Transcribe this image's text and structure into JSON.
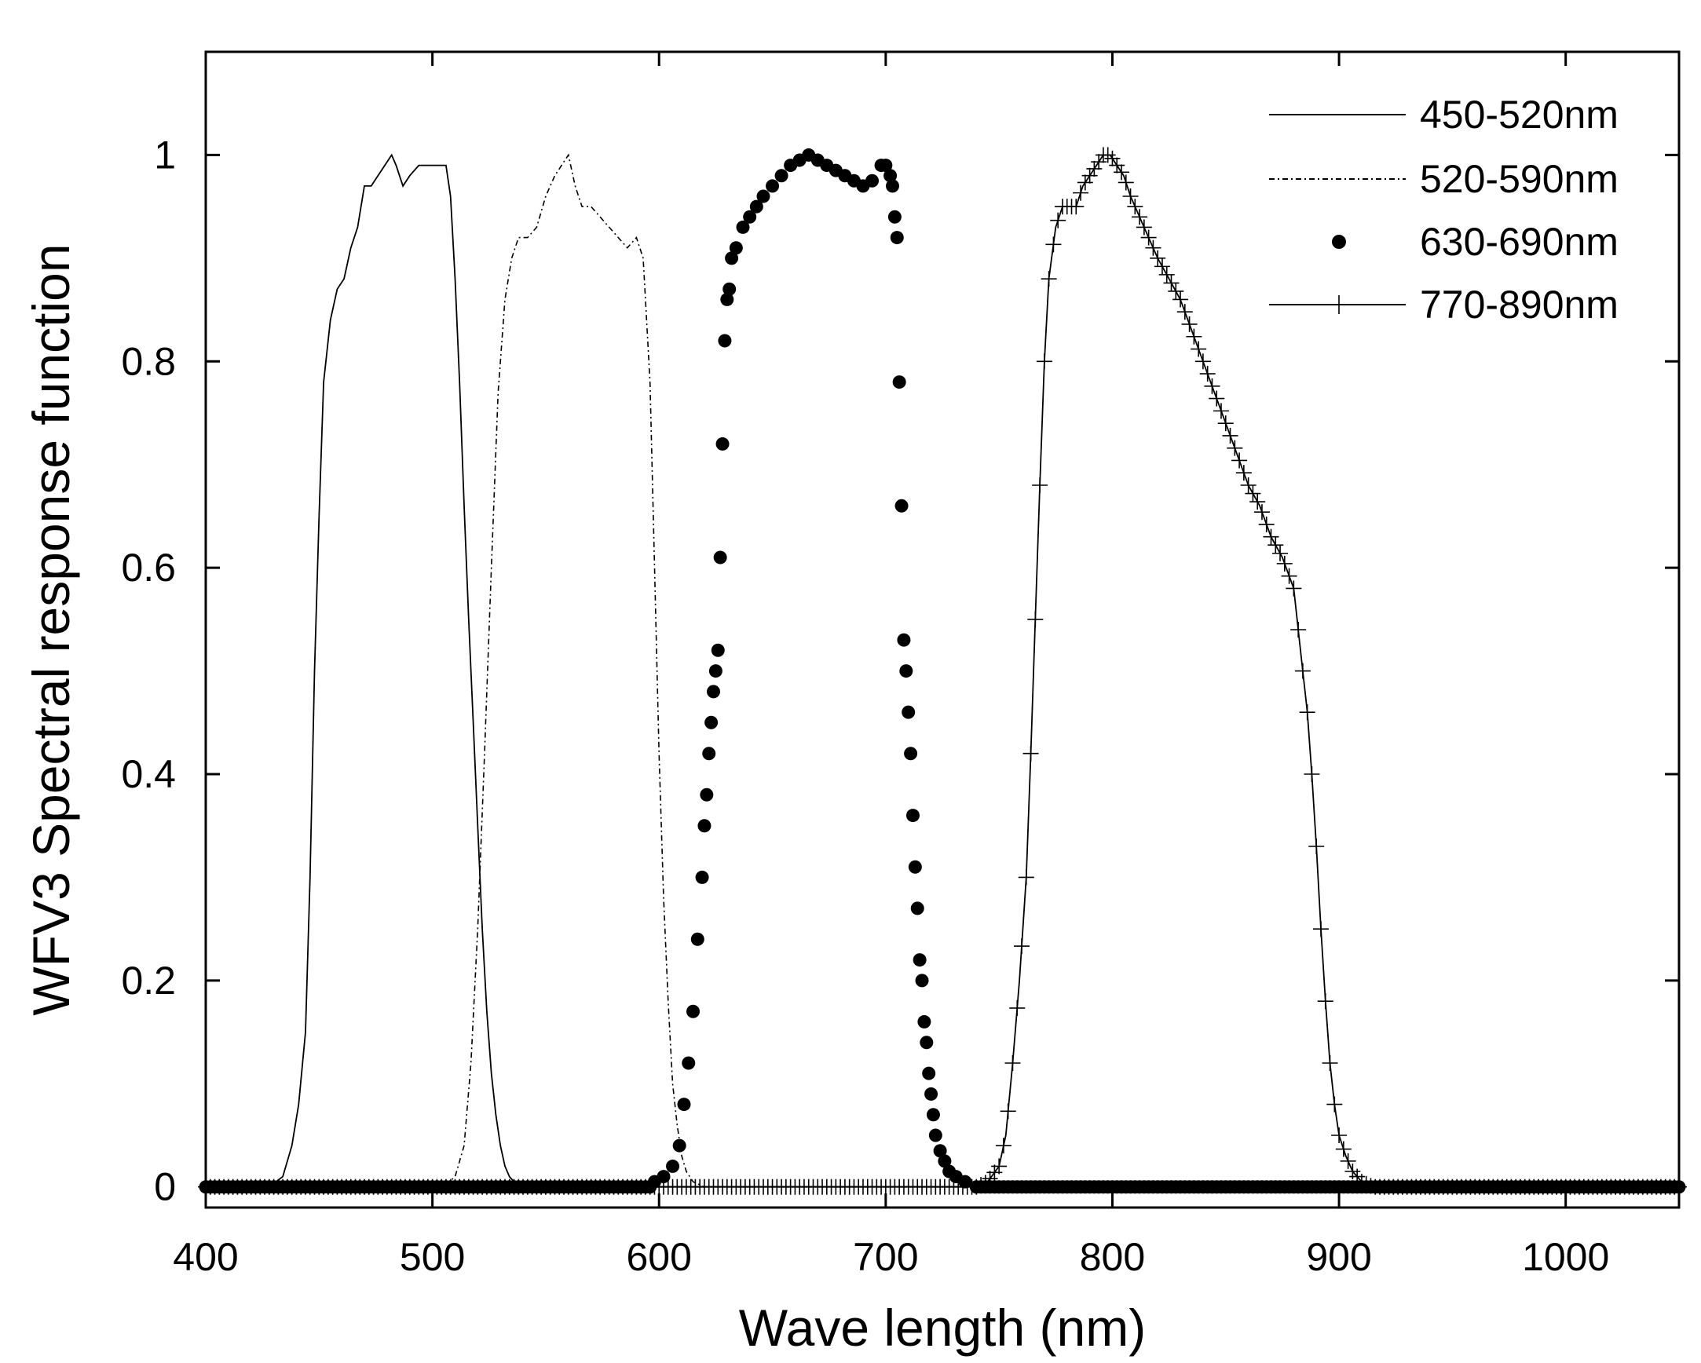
{
  "chart_data": {
    "type": "line",
    "title": "",
    "xlabel": "Wave length (nm)",
    "ylabel": "WFV3 Spectral response function",
    "xlim": [
      400,
      1050
    ],
    "ylim": [
      -0.02,
      1.1
    ],
    "xticks": [
      400,
      500,
      600,
      700,
      800,
      900,
      1000
    ],
    "yticks": [
      0,
      0.2,
      0.4,
      0.6,
      0.8,
      1
    ],
    "xtick_labels": [
      "400",
      "500",
      "600",
      "700",
      "800",
      "900",
      "1000"
    ],
    "ytick_labels": [
      "0",
      "0.2",
      "0.4",
      "0.6",
      "0.8",
      "1"
    ],
    "grid": false,
    "legend_position": "top-right",
    "series": [
      {
        "name": "450-520nm",
        "style": "solid",
        "x": [
          400,
          428,
          434,
          438,
          441,
          444,
          446,
          448,
          450,
          452,
          455,
          458,
          461,
          464,
          467,
          470,
          473,
          476,
          479,
          482,
          484,
          487,
          490,
          494,
          498,
          502,
          506,
          508,
          510,
          512,
          514,
          516,
          518,
          520,
          522,
          524,
          526,
          528,
          530,
          532,
          534,
          536,
          540,
          600,
          700,
          800,
          900,
          1000,
          1050
        ],
        "y": [
          0,
          0,
          0.01,
          0.04,
          0.08,
          0.15,
          0.3,
          0.5,
          0.65,
          0.78,
          0.84,
          0.87,
          0.88,
          0.91,
          0.93,
          0.97,
          0.97,
          0.98,
          0.99,
          1.0,
          0.99,
          0.97,
          0.98,
          0.99,
          0.99,
          0.99,
          0.99,
          0.96,
          0.88,
          0.78,
          0.66,
          0.55,
          0.45,
          0.35,
          0.25,
          0.17,
          0.11,
          0.07,
          0.04,
          0.02,
          0.01,
          0.005,
          0,
          0,
          0,
          0,
          0,
          0,
          0
        ]
      },
      {
        "name": "520-590nm",
        "style": "dash-dot",
        "x": [
          400,
          505,
          510,
          514,
          517,
          520,
          523,
          526,
          529,
          532,
          535,
          538,
          542,
          546,
          550,
          554,
          557,
          560,
          563,
          566,
          570,
          574,
          578,
          582,
          586,
          590,
          593,
          596,
          598,
          600,
          602,
          604,
          606,
          608,
          610,
          612,
          615,
          620,
          650,
          700,
          800,
          900,
          1000,
          1050
        ],
        "y": [
          0,
          0,
          0.01,
          0.04,
          0.12,
          0.25,
          0.42,
          0.6,
          0.77,
          0.86,
          0.9,
          0.92,
          0.92,
          0.93,
          0.96,
          0.98,
          0.99,
          1.0,
          0.97,
          0.95,
          0.95,
          0.94,
          0.93,
          0.92,
          0.91,
          0.92,
          0.9,
          0.78,
          0.6,
          0.42,
          0.28,
          0.18,
          0.1,
          0.06,
          0.03,
          0.015,
          0.005,
          0,
          0,
          0,
          0,
          0,
          0,
          0
        ]
      },
      {
        "name": "630-690nm",
        "style": "dots",
        "x": [
          598,
          602,
          606,
          609,
          611,
          613,
          615,
          617,
          619,
          620,
          621,
          622,
          623,
          624,
          625,
          626,
          627,
          628,
          629,
          630,
          631,
          632,
          634,
          637,
          640,
          643,
          646,
          650,
          654,
          658,
          662,
          666,
          670,
          674,
          678,
          682,
          686,
          690,
          694,
          698,
          700,
          702,
          703,
          704,
          705,
          706,
          707,
          708,
          709,
          710,
          711,
          712,
          713,
          714,
          715,
          716,
          717,
          718,
          719,
          720,
          721,
          722,
          724,
          726,
          728,
          731,
          735,
          740
        ],
        "y": [
          0.005,
          0.01,
          0.02,
          0.04,
          0.08,
          0.12,
          0.17,
          0.24,
          0.3,
          0.35,
          0.38,
          0.42,
          0.45,
          0.48,
          0.5,
          0.52,
          0.61,
          0.72,
          0.82,
          0.86,
          0.87,
          0.9,
          0.91,
          0.93,
          0.94,
          0.95,
          0.96,
          0.97,
          0.98,
          0.99,
          0.995,
          1.0,
          0.995,
          0.99,
          0.985,
          0.98,
          0.975,
          0.97,
          0.975,
          0.99,
          0.99,
          0.98,
          0.97,
          0.94,
          0.92,
          0.78,
          0.66,
          0.53,
          0.5,
          0.46,
          0.42,
          0.36,
          0.31,
          0.27,
          0.22,
          0.2,
          0.16,
          0.14,
          0.11,
          0.09,
          0.07,
          0.05,
          0.035,
          0.025,
          0.015,
          0.01,
          0.005,
          0
        ]
      },
      {
        "name": "770-890nm",
        "style": "solid-cross",
        "x": [
          400,
          740,
          745,
          750,
          753,
          756,
          759,
          762,
          764,
          766,
          768,
          770,
          772,
          775,
          778,
          781,
          784,
          787,
          790,
          793,
          796,
          799,
          802,
          805,
          808,
          812,
          816,
          820,
          825,
          830,
          835,
          840,
          845,
          850,
          855,
          860,
          865,
          870,
          875,
          880,
          883,
          886,
          888,
          890,
          892,
          894,
          896,
          898,
          900,
          903,
          906,
          910,
          915,
          920,
          1050
        ],
        "y": [
          0,
          0,
          0.005,
          0.02,
          0.05,
          0.12,
          0.2,
          0.3,
          0.42,
          0.55,
          0.68,
          0.8,
          0.88,
          0.93,
          0.95,
          0.95,
          0.95,
          0.97,
          0.98,
          0.99,
          1.0,
          1.0,
          0.99,
          0.98,
          0.96,
          0.94,
          0.92,
          0.9,
          0.88,
          0.86,
          0.83,
          0.8,
          0.77,
          0.74,
          0.71,
          0.68,
          0.66,
          0.63,
          0.61,
          0.58,
          0.52,
          0.46,
          0.4,
          0.33,
          0.25,
          0.18,
          0.12,
          0.08,
          0.05,
          0.03,
          0.015,
          0.005,
          0,
          0,
          0
        ]
      }
    ]
  }
}
